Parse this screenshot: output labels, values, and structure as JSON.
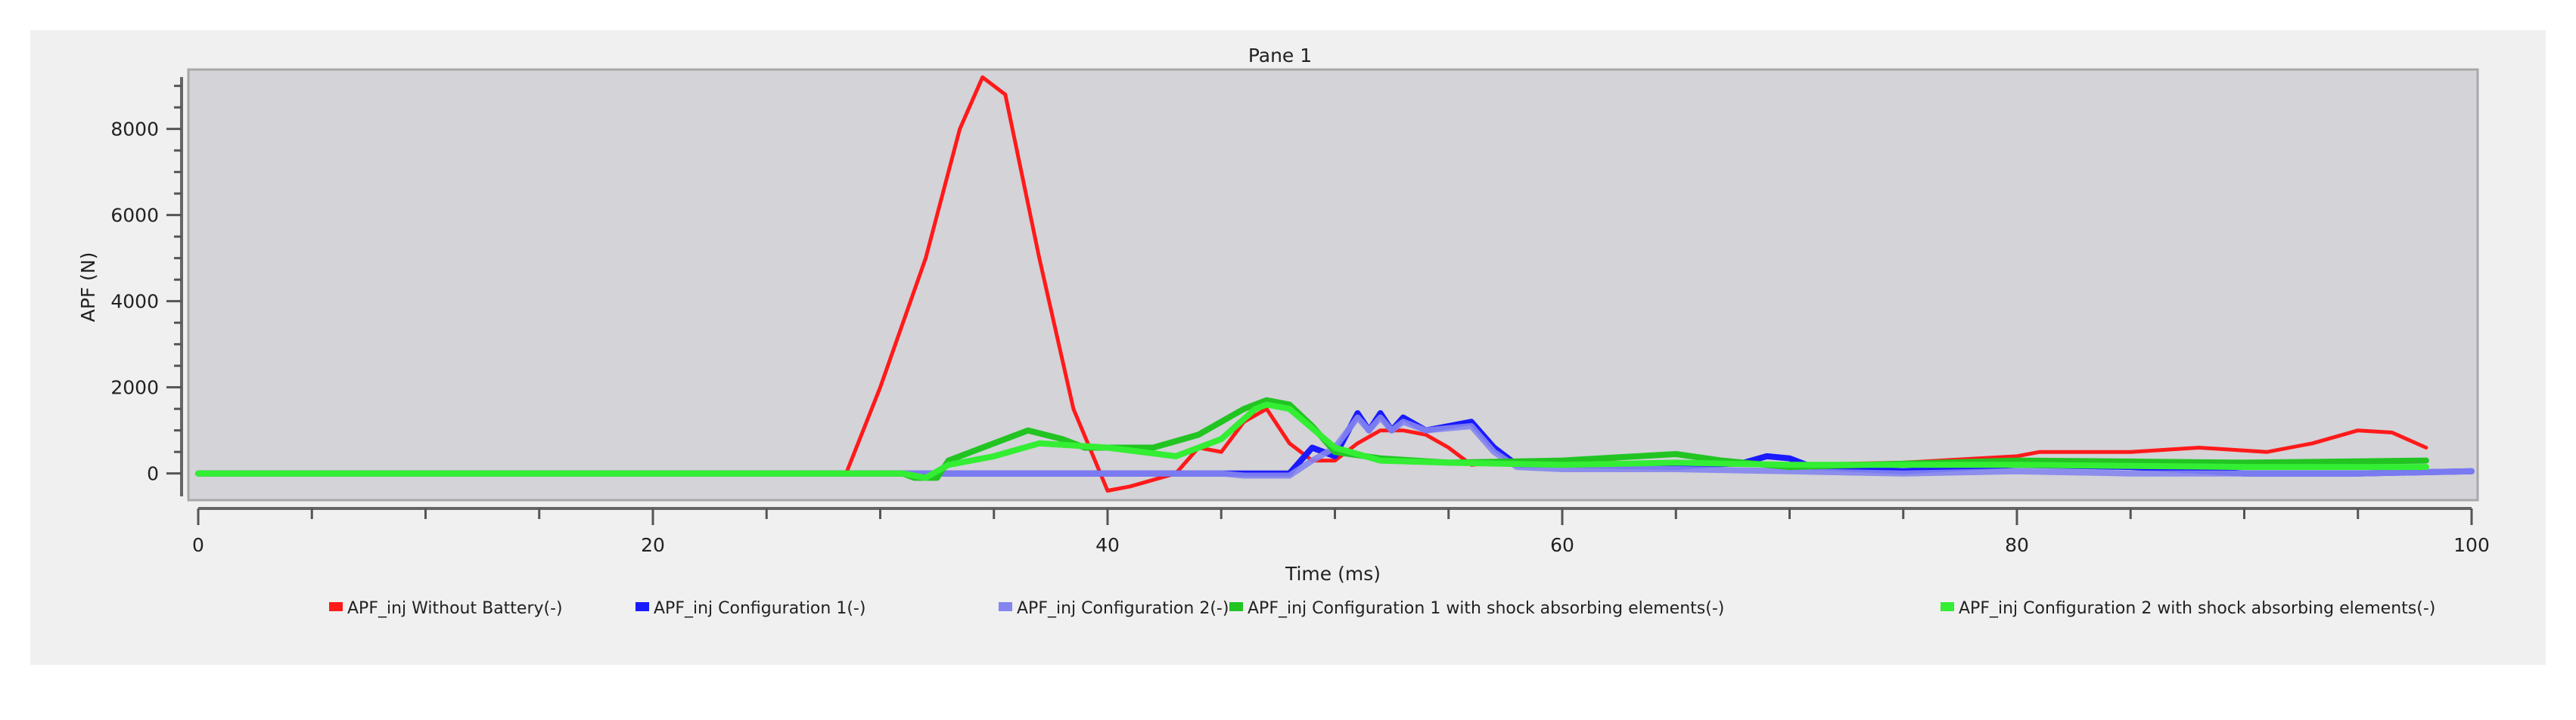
{
  "chart_data": {
    "type": "line",
    "title": "Pane 1",
    "xlabel": "Time (ms)",
    "ylabel": "APF (N)",
    "xlim": [
      0,
      100
    ],
    "ylim": [
      -620,
      9380
    ],
    "xticks": [
      0,
      20,
      40,
      60,
      80,
      100
    ],
    "yticks": [
      0,
      2000,
      4000,
      6000,
      8000
    ],
    "grid": false,
    "legend_position": "bottom",
    "background": "#d3d3d8",
    "series": [
      {
        "name": "APF_inj Without Battery(-)",
        "color": "#ff1a1a",
        "x": [
          0,
          10,
          20,
          28.5,
          30,
          32,
          33.5,
          34.5,
          35.5,
          37,
          38.5,
          40,
          41,
          43,
          44,
          45,
          46,
          47,
          48,
          49,
          50,
          51,
          52,
          53,
          54,
          55,
          56,
          58,
          60,
          65,
          70,
          75,
          80,
          81,
          85,
          88,
          91,
          93,
          95,
          96.5,
          98
        ],
        "y": [
          0,
          0,
          0,
          0,
          2000,
          5000,
          8000,
          9200,
          8800,
          5000,
          1500,
          -400,
          -300,
          0,
          600,
          500,
          1200,
          1500,
          700,
          300,
          300,
          700,
          1000,
          1000,
          900,
          600,
          200,
          300,
          300,
          200,
          200,
          250,
          400,
          500,
          500,
          600,
          500,
          700,
          1000,
          950,
          600
        ]
      },
      {
        "name": "APF_inj Configuration 1(-)",
        "color": "#1a1aff",
        "x": [
          0,
          20,
          40,
          48,
          49,
          50,
          51,
          51.5,
          52,
          52.5,
          53,
          54,
          55,
          56,
          57,
          58,
          60,
          65,
          68,
          69,
          70,
          71,
          75,
          80,
          85,
          90,
          95,
          100
        ],
        "y": [
          0,
          0,
          0,
          0,
          600,
          400,
          1400,
          1000,
          1400,
          1000,
          1300,
          1000,
          1100,
          1200,
          600,
          200,
          200,
          150,
          250,
          400,
          350,
          150,
          50,
          200,
          150,
          0,
          0,
          50
        ]
      },
      {
        "name": "APF_inj Configuration 2(-)",
        "color": "#8585f0",
        "x": [
          0,
          20,
          40,
          45,
          46,
          48,
          49,
          50,
          51,
          51.5,
          52,
          52.5,
          53,
          54,
          55,
          56,
          57,
          58,
          60,
          65,
          70,
          75,
          80,
          85,
          90,
          95,
          100
        ],
        "y": [
          0,
          0,
          0,
          0,
          -50,
          -50,
          300,
          600,
          1300,
          1000,
          1300,
          1000,
          1200,
          1000,
          1050,
          1100,
          500,
          150,
          100,
          100,
          50,
          0,
          50,
          0,
          0,
          0,
          50
        ]
      },
      {
        "name": "APF_inj Configuration 1 with shock absorbing elements(-)",
        "color": "#22c422",
        "x": [
          0,
          20,
          31,
          31.5,
          32.5,
          33,
          35,
          36.5,
          38,
          39,
          42,
          44,
          46,
          47,
          48,
          49,
          50,
          52,
          55,
          60,
          65,
          67,
          70,
          80,
          90,
          98
        ],
        "y": [
          0,
          0,
          0,
          -100,
          -100,
          300,
          700,
          1000,
          800,
          600,
          600,
          900,
          1500,
          1700,
          1600,
          1100,
          500,
          350,
          250,
          300,
          450,
          300,
          150,
          300,
          250,
          300
        ]
      },
      {
        "name": "APF_inj Configuration 2 with shock absorbing elements(-)",
        "color": "#33ee33",
        "x": [
          0,
          20,
          31,
          32,
          33,
          35,
          37,
          40,
          43,
          45,
          46.5,
          47,
          48,
          50,
          52,
          55,
          60,
          65,
          70,
          80,
          90,
          98
        ],
        "y": [
          0,
          0,
          0,
          -100,
          200,
          400,
          700,
          600,
          400,
          800,
          1500,
          1600,
          1500,
          600,
          300,
          250,
          200,
          250,
          200,
          200,
          150,
          150
        ]
      }
    ]
  }
}
